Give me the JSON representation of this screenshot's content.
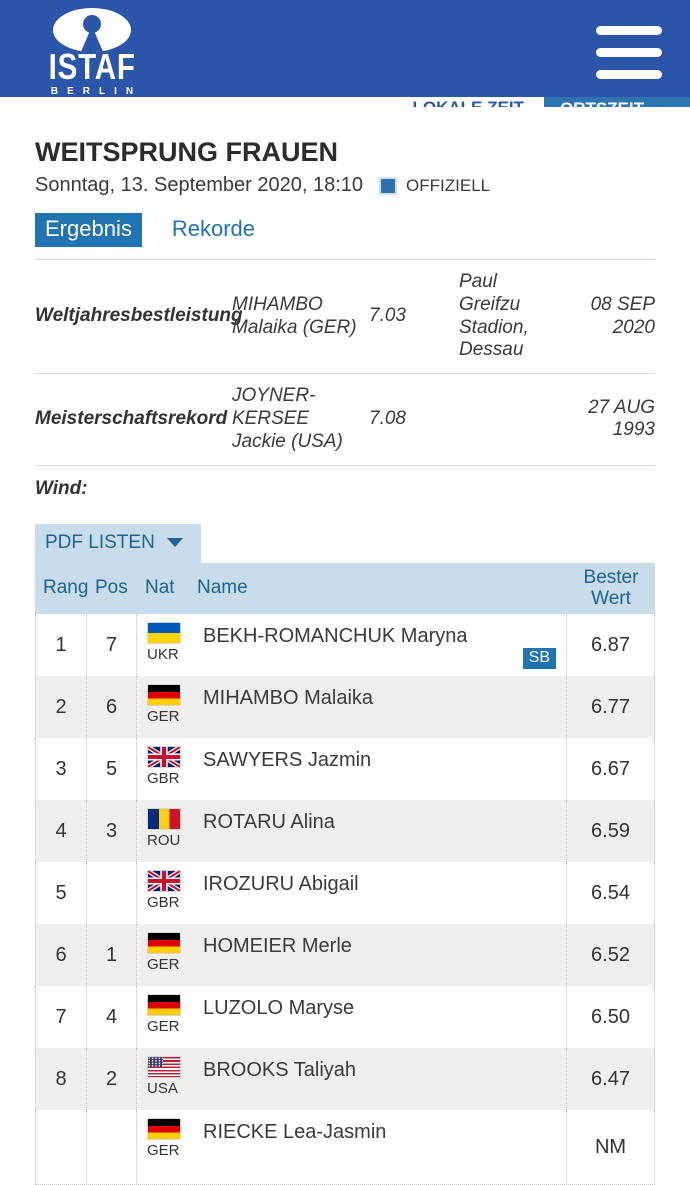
{
  "header": {
    "logo_title": "ISTAF",
    "logo_subtitle": "BERLIN"
  },
  "time_tabs": {
    "local": "LOKALE ZEIT",
    "event": "ORTSZEIT"
  },
  "event": {
    "title": "WEITSPRUNG FRAUEN",
    "datetime": "Sonntag, 13. September 2020, 18:10",
    "status": "OFFIZIELL"
  },
  "tabs": [
    {
      "label": "Ergebnis",
      "active": true
    },
    {
      "label": "Rekorde",
      "active": false
    }
  ],
  "records": [
    {
      "label": "Weltjahresbestleistung",
      "athlete": "MIHAMBO Malaika (GER)",
      "mark": "7.03",
      "venue": "Paul Greifzu Stadion, Dessau",
      "date": "08 SEP 2020"
    },
    {
      "label": "Meisterschaftsrekord",
      "athlete": "JOYNER-KERSEE Jackie (USA)",
      "mark": "7.08",
      "venue": "",
      "date": "27 AUG 1993"
    }
  ],
  "wind_label": "Wind:",
  "pdf_button": {
    "label": "PDF LISTEN"
  },
  "results_table": {
    "columns": [
      "Rang",
      "Pos",
      "Nat",
      "Name",
      "Bester Wert"
    ],
    "rows": [
      {
        "rank": "1",
        "pos": "7",
        "nat": "UKR",
        "name": "BEKH-ROMANCHUK Maryna",
        "badge": "SB",
        "mark": "6.87"
      },
      {
        "rank": "2",
        "pos": "6",
        "nat": "GER",
        "name": "MIHAMBO Malaika",
        "badge": "",
        "mark": "6.77"
      },
      {
        "rank": "3",
        "pos": "5",
        "nat": "GBR",
        "name": "SAWYERS Jazmin",
        "badge": "",
        "mark": "6.67"
      },
      {
        "rank": "4",
        "pos": "3",
        "nat": "ROU",
        "name": "ROTARU Alina",
        "badge": "",
        "mark": "6.59"
      },
      {
        "rank": "5",
        "pos": "",
        "nat": "GBR",
        "name": "IROZURU Abigail",
        "badge": "",
        "mark": "6.54"
      },
      {
        "rank": "6",
        "pos": "1",
        "nat": "GER",
        "name": "HOMEIER Merle",
        "badge": "",
        "mark": "6.52"
      },
      {
        "rank": "7",
        "pos": "4",
        "nat": "GER",
        "name": "LUZOLO Maryse",
        "badge": "",
        "mark": "6.50"
      },
      {
        "rank": "8",
        "pos": "2",
        "nat": "USA",
        "name": "BROOKS Taliyah",
        "badge": "",
        "mark": "6.47"
      },
      {
        "rank": "",
        "pos": "",
        "nat": "GER",
        "name": "RIECKE Lea-Jasmin",
        "badge": "",
        "mark": "NM"
      }
    ]
  },
  "colors": {
    "header_blue": "#2b55a8",
    "accent_blue": "#2173b2",
    "light_blue_bg": "#c9dcec",
    "link_blue": "#1d6394",
    "zebra_gray": "#f0efee"
  }
}
